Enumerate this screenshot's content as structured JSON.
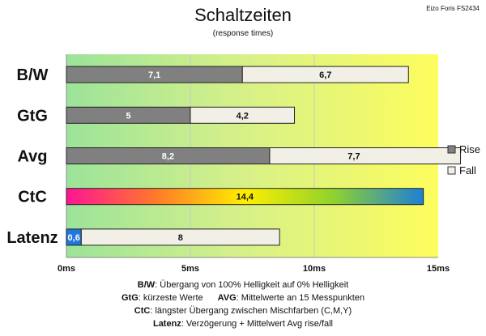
{
  "header": {
    "title": "Schaltzeiten",
    "subtitle": "(response times)",
    "corner_label": "Eizo Foris FS2434"
  },
  "chart_data": {
    "type": "bar",
    "orientation": "horizontal",
    "stacked": true,
    "categories": [
      "B/W",
      "GtG",
      "Avg",
      "CtC",
      "Latenz"
    ],
    "series": [
      {
        "name": "Rise",
        "values": [
          7.1,
          5,
          8.2,
          null,
          null
        ],
        "color": "#808080"
      },
      {
        "name": "Fall",
        "values": [
          6.7,
          4.2,
          7.7,
          null,
          8
        ],
        "color": "#f2efe6"
      }
    ],
    "ctc_bar": {
      "category": "CtC",
      "value": 14.4,
      "style": "rainbow-gradient",
      "gradient_colors": [
        "#ff1493",
        "#ff7a2a",
        "#ffee00",
        "#8fd12f",
        "#1e7fd8"
      ]
    },
    "latency_bar": {
      "category": "Latenz",
      "value": 0.6,
      "color": "#2277dd"
    },
    "data_labels": {
      "B/W": [
        "7,1",
        "6,7"
      ],
      "GtG": [
        "5",
        "4,2"
      ],
      "Avg": [
        "8,2",
        "7,7"
      ],
      "CtC": [
        "14,4"
      ],
      "Latenz": [
        "0,6",
        "8"
      ]
    },
    "x_ticks": [
      {
        "value": 0,
        "label": "0ms"
      },
      {
        "value": 5,
        "label": "5ms"
      },
      {
        "value": 10,
        "label": "10ms"
      },
      {
        "value": 15,
        "label": "15ms"
      }
    ],
    "xlim": [
      0,
      15
    ],
    "xlabel": "",
    "ylabel": "",
    "grid": "vertical",
    "background": "gradient green to yellow",
    "legend_position": "right",
    "colors": {
      "green": "#9be39a",
      "yellow": "#fdfd5e",
      "grid": "#c8c8c8"
    }
  },
  "footnotes": {
    "line1": {
      "key": "B/W",
      "text": ": Übergang von 100% Helligkeit auf 0% Helligkeit"
    },
    "line2a": {
      "key": "GtG",
      "text": ": kürzeste Werte"
    },
    "line2b": {
      "key": "AVG",
      "text": ": Mittelwerte an 15 Messpunkten"
    },
    "line3": {
      "key": "CtC",
      "text": ": längster Übergang zwischen Mischfarben (C,M,Y)"
    },
    "line4": {
      "key": "Latenz",
      "text": ": Verzögerung + Mittelwert Avg rise/fall"
    }
  }
}
